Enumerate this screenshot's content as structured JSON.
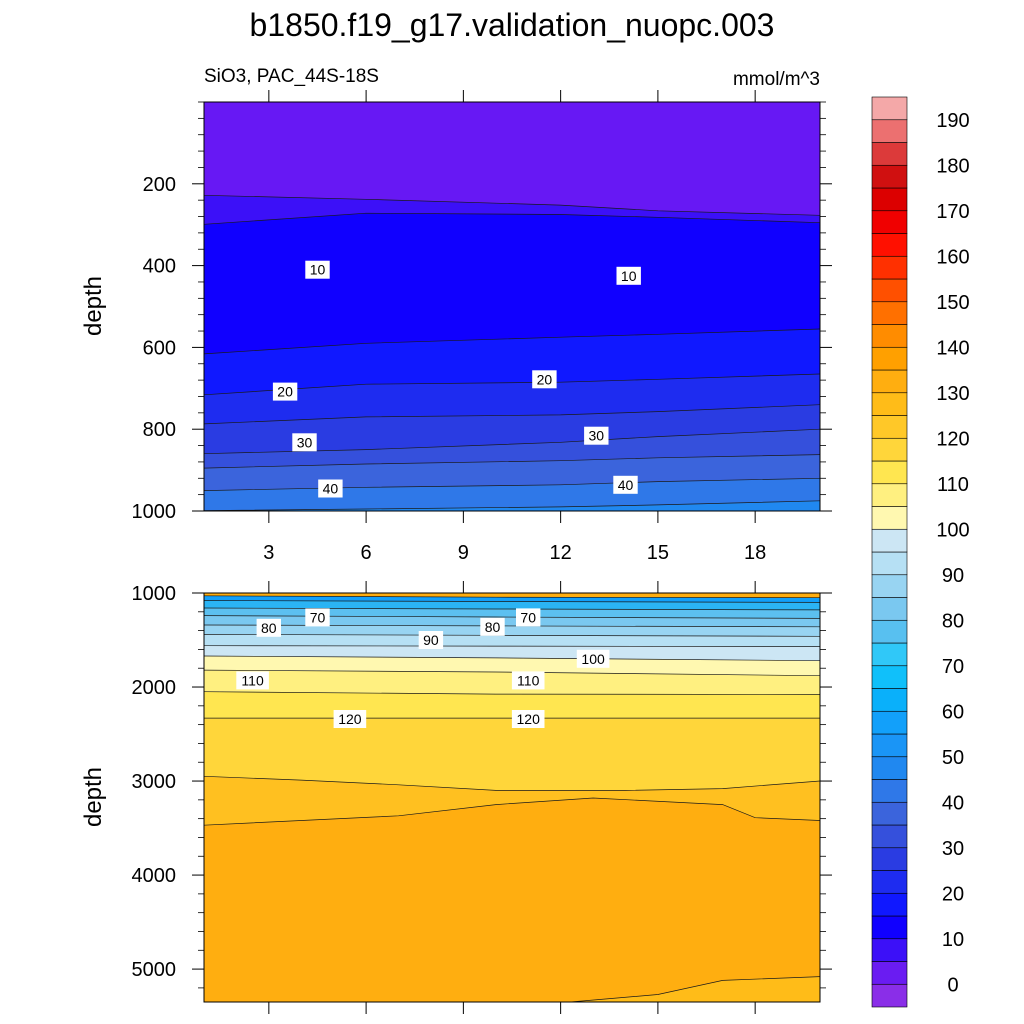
{
  "title": "b1850.f19_g17.validation_nuopc.003",
  "subtitle_left": "SiO3, PAC_44S-18S",
  "subtitle_right": "mmol/m^3",
  "chart_data": [
    {
      "type": "contour",
      "panel": "upper",
      "ylabel": "depth",
      "ylim": [
        1000,
        0
      ],
      "xlim": [
        1,
        20
      ],
      "xticks": [
        3,
        6,
        9,
        12,
        15,
        18
      ],
      "yticks": [
        200,
        400,
        600,
        800,
        1000
      ],
      "contour_lines": [
        {
          "level": 5,
          "x": [
            1,
            6,
            12,
            15,
            20
          ],
          "y": [
            228,
            238,
            252,
            266,
            277
          ]
        },
        {
          "level": 10,
          "x": [
            1,
            6,
            12,
            15,
            20
          ],
          "y": [
            299,
            272,
            275,
            282,
            295
          ]
        },
        {
          "level": 15,
          "x": [
            1,
            6,
            12,
            15,
            20
          ],
          "y": [
            616,
            590,
            575,
            568,
            555
          ]
        },
        {
          "level": 20,
          "x": [
            1,
            6,
            12,
            15,
            20
          ],
          "y": [
            716,
            690,
            685,
            678,
            665
          ]
        },
        {
          "level": 25,
          "x": [
            1,
            6,
            12,
            15,
            20
          ],
          "y": [
            787,
            770,
            765,
            757,
            740
          ]
        },
        {
          "level": 30,
          "x": [
            1,
            6,
            12,
            15,
            20
          ],
          "y": [
            860,
            850,
            832,
            818,
            800
          ]
        },
        {
          "level": 35,
          "x": [
            1,
            6,
            12,
            15,
            20
          ],
          "y": [
            895,
            885,
            877,
            870,
            862
          ]
        },
        {
          "level": 40,
          "x": [
            1,
            6,
            12,
            15,
            20
          ],
          "y": [
            950,
            942,
            936,
            928,
            920
          ]
        },
        {
          "level": 45,
          "x": [
            1,
            6,
            12,
            15,
            20
          ],
          "y": [
            999,
            995,
            990,
            985,
            975
          ]
        }
      ],
      "line_labels": [
        {
          "text": "10",
          "x": 4.5,
          "y": 410
        },
        {
          "text": "10",
          "x": 14.1,
          "y": 425
        },
        {
          "text": "20",
          "x": 3.5,
          "y": 708
        },
        {
          "text": "20",
          "x": 11.5,
          "y": 678
        },
        {
          "text": "30",
          "x": 4.1,
          "y": 832
        },
        {
          "text": "30",
          "x": 13.1,
          "y": 816
        },
        {
          "text": "40",
          "x": 4.9,
          "y": 945
        },
        {
          "text": "40",
          "x": 14.0,
          "y": 936
        }
      ]
    },
    {
      "type": "contour",
      "panel": "lower",
      "ylabel": "depth",
      "ylim": [
        5350,
        1000
      ],
      "xlim": [
        1,
        20
      ],
      "yticks": [
        1000,
        2000,
        3000,
        4000,
        5000
      ],
      "contour_lines": [
        {
          "level": 60,
          "x": [
            1,
            10,
            20
          ],
          "y": [
            1030,
            1045,
            1050
          ]
        },
        {
          "level": 65,
          "x": [
            1,
            10,
            20
          ],
          "y": [
            1080,
            1090,
            1100
          ]
        },
        {
          "level": 70,
          "x": [
            1,
            10,
            20
          ],
          "y": [
            1160,
            1170,
            1180
          ]
        },
        {
          "level": 75,
          "x": [
            1,
            10,
            20
          ],
          "y": [
            1240,
            1255,
            1270
          ]
        },
        {
          "level": 80,
          "x": [
            1,
            10,
            20
          ],
          "y": [
            1340,
            1350,
            1360
          ]
        },
        {
          "level": 85,
          "x": [
            1,
            10,
            20
          ],
          "y": [
            1440,
            1450,
            1460
          ]
        },
        {
          "level": 90,
          "x": [
            1,
            10,
            20
          ],
          "y": [
            1560,
            1565,
            1570
          ]
        },
        {
          "level": 100,
          "x": [
            1,
            10,
            20
          ],
          "y": [
            1670,
            1690,
            1720
          ]
        },
        {
          "level": 105,
          "x": [
            1,
            10,
            20
          ],
          "y": [
            1820,
            1840,
            1880
          ]
        },
        {
          "level": 110,
          "x": [
            1,
            10,
            20
          ],
          "y": [
            2050,
            2075,
            2080
          ]
        },
        {
          "level": 115,
          "x": [
            1,
            10,
            20
          ],
          "y": [
            2330,
            2330,
            2330
          ]
        },
        {
          "level": 120,
          "x": [
            1,
            4,
            7,
            10,
            14,
            17,
            20
          ],
          "y": [
            2950,
            2990,
            3040,
            3100,
            3100,
            3080,
            3000
          ]
        },
        {
          "level": 122,
          "x": [
            1,
            4,
            7,
            10,
            13,
            17,
            18,
            20
          ],
          "y": [
            3470,
            3420,
            3370,
            3250,
            3180,
            3250,
            3390,
            3420
          ]
        },
        {
          "level": 124,
          "x": [
            12.3,
            15,
            17,
            20
          ],
          "y": [
            5350,
            5270,
            5120,
            5080
          ]
        }
      ],
      "line_labels": [
        {
          "text": "70",
          "x": 4.5,
          "y": 1260
        },
        {
          "text": "70",
          "x": 11.0,
          "y": 1260
        },
        {
          "text": "80",
          "x": 3.0,
          "y": 1370
        },
        {
          "text": "80",
          "x": 9.9,
          "y": 1360
        },
        {
          "text": "90",
          "x": 8.0,
          "y": 1500
        },
        {
          "text": "100",
          "x": 13.0,
          "y": 1700
        },
        {
          "text": "110",
          "x": 2.5,
          "y": 1930
        },
        {
          "text": "110",
          "x": 11.0,
          "y": 1930
        },
        {
          "text": "120",
          "x": 5.5,
          "y": 2340
        },
        {
          "text": "120",
          "x": 11.0,
          "y": 2340
        }
      ]
    }
  ],
  "colorbar": {
    "labels": [
      "0",
      "10",
      "20",
      "30",
      "40",
      "50",
      "60",
      "70",
      "80",
      "90",
      "100",
      "110",
      "120",
      "130",
      "140",
      "150",
      "160",
      "170",
      "180",
      "190"
    ],
    "colors": [
      "#8a2ee8",
      "#6a1cf2",
      "#3c10f8",
      "#1000ff",
      "#1018ff",
      "#1e2cf0",
      "#2a3ce2",
      "#3550dc",
      "#3b64dc",
      "#2f78e8",
      "#2088f0",
      "#1a95f6",
      "#12a0fa",
      "#0ab0fa",
      "#10c0fa",
      "#30c8f8",
      "#58c0f0",
      "#7ac8f0",
      "#98d4f2",
      "#b6e0f4",
      "#cce6f4",
      "#fff8b0",
      "#fff080",
      "#ffe650",
      "#ffd63a",
      "#ffc828",
      "#ffbc18",
      "#ffae10",
      "#ffa000",
      "#ff8c00",
      "#ff7000",
      "#ff5000",
      "#ff3000",
      "#ff1000",
      "#f00000",
      "#dc0000",
      "#d01010",
      "#dc3a3a",
      "#ec7070",
      "#f4a8a8"
    ]
  },
  "fill_colors_by_level": {
    "0": "#6718f4",
    "5": "#3c10f8",
    "10": "#1000ff",
    "15": "#1018ff",
    "20": "#1e2cf0",
    "25": "#2a3ce2",
    "30": "#3550dc",
    "35": "#3b64dc",
    "40": "#2f78e8",
    "45": "#2088f0",
    "60": "#12a0fa",
    "65": "#2bb4f4",
    "70": "#5cc0f0",
    "75": "#7ac8f0",
    "80": "#98d4f2",
    "85": "#b6e0f4",
    "90": "#cce6f4",
    "100": "#fff8b0",
    "105": "#fff080",
    "110": "#ffe650",
    "115": "#ffd63a",
    "120": "#ffc020",
    "122": "#ffae10",
    "124": "#ffbc18"
  }
}
